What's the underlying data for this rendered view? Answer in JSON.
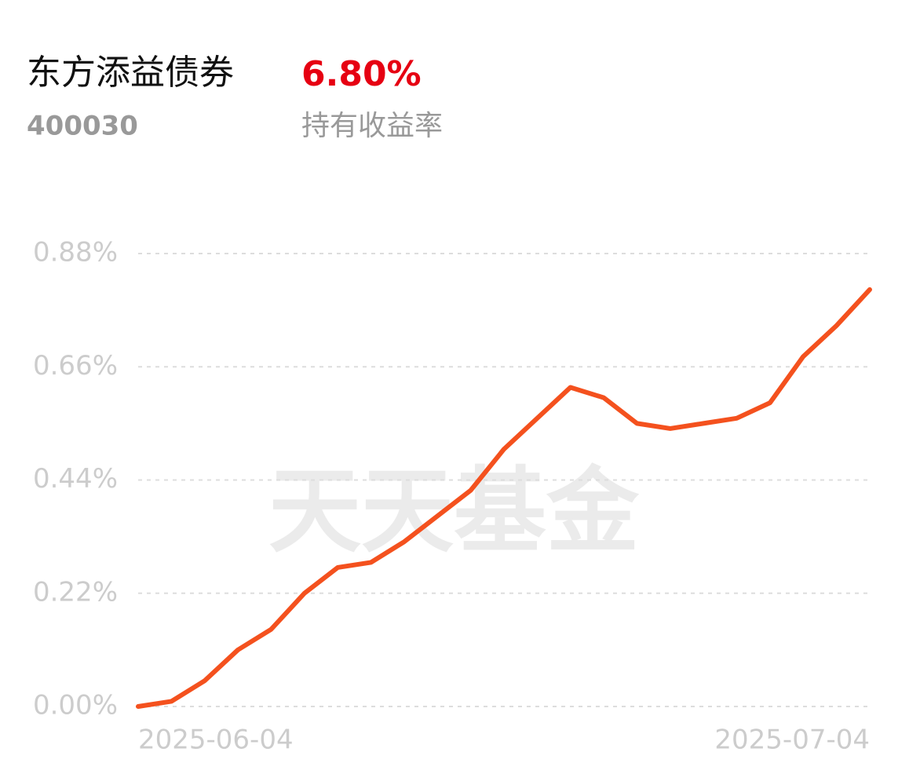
{
  "header": {
    "fund_name": "东方添益债券",
    "fund_code": "400030",
    "return_value": "6.80%",
    "return_label": "持有收益率"
  },
  "watermark": "天天基金",
  "chart_data": {
    "type": "line",
    "categories": [
      "2025-06-04",
      null,
      null,
      null,
      null,
      null,
      null,
      null,
      null,
      null,
      null,
      null,
      null,
      null,
      null,
      null,
      null,
      null,
      null,
      null,
      null,
      null,
      "2025-07-04"
    ],
    "series": [
      {
        "color": "#f4511e",
        "values": [
          0.0,
          0.01,
          0.05,
          0.11,
          0.15,
          0.22,
          0.27,
          0.28,
          0.32,
          0.37,
          0.42,
          0.5,
          0.56,
          0.62,
          0.6,
          0.55,
          0.54,
          0.55,
          0.56,
          0.59,
          0.68,
          0.74,
          0.81
        ]
      }
    ],
    "ylim": [
      0,
      0.88
    ],
    "yticks": [
      {
        "value": 0,
        "label": "0.00%"
      },
      {
        "value": 0.22,
        "label": "0.22%"
      },
      {
        "value": 0.44,
        "label": "0.44%"
      },
      {
        "value": 0.66,
        "label": "0.66%"
      },
      {
        "value": 0.88,
        "label": "0.88%"
      }
    ],
    "grid": true
  }
}
